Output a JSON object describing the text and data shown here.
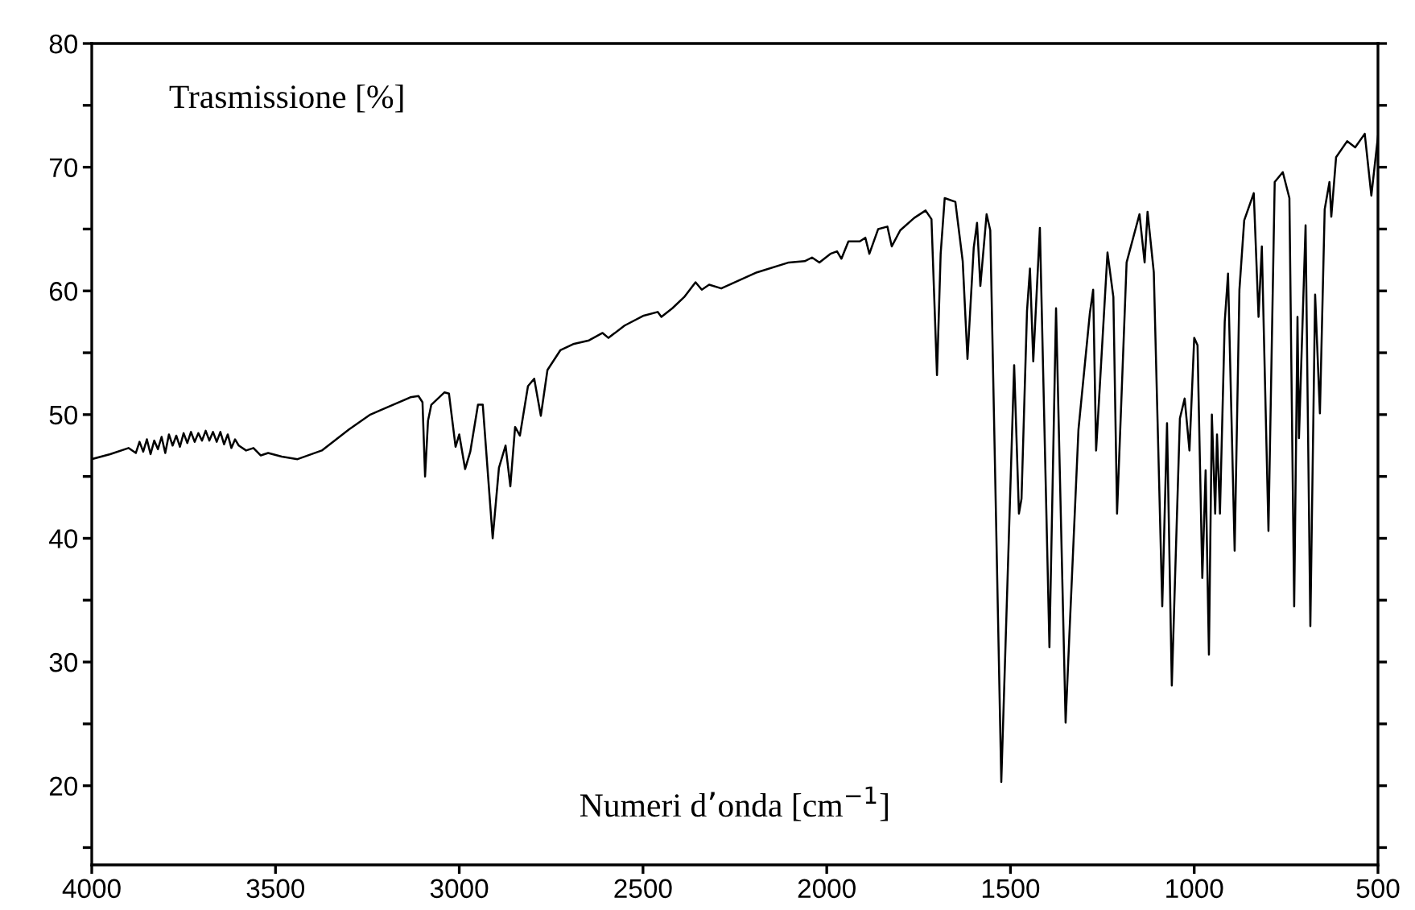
{
  "chart_data": {
    "type": "line",
    "xlabel": "Numeri d’onda [cm$^{−1}$]",
    "ylabel": "Trasmissione [%]",
    "xlim": [
      4000,
      500
    ],
    "ylim": [
      13.6,
      80
    ],
    "xticks": [
      4000,
      3500,
      3000,
      2500,
      2000,
      1500,
      1000,
      500
    ],
    "yticks": [
      {
        "value": 15,
        "label": null
      },
      20,
      {
        "value": 25,
        "label": null
      },
      30,
      {
        "value": 35,
        "label": null
      },
      40,
      {
        "value": 45,
        "label": null
      },
      50,
      {
        "value": 55,
        "label": null
      },
      60,
      {
        "value": 65,
        "label": null
      },
      70,
      {
        "value": 75,
        "label": null
      },
      80
    ],
    "grid": false,
    "legend": false,
    "marker": "none",
    "line_style": "solid",
    "series": [
      {
        "color": "#000000",
        "x": [
          4000,
          3950,
          3900,
          3880,
          3870,
          3860,
          3850,
          3840,
          3830,
          3820,
          3810,
          3800,
          3790,
          3780,
          3770,
          3760,
          3750,
          3740,
          3730,
          3720,
          3710,
          3700,
          3690,
          3680,
          3670,
          3660,
          3650,
          3640,
          3630,
          3620,
          3610,
          3600,
          3580,
          3560,
          3540,
          3520,
          3483,
          3440,
          3374,
          3300,
          3242,
          3180,
          3133,
          3111,
          3100,
          3093,
          3085,
          3076,
          3040,
          3028,
          3010,
          3000,
          2984,
          2970,
          2949,
          2936,
          2909,
          2892,
          2874,
          2861,
          2848,
          2835,
          2813,
          2796,
          2778,
          2760,
          2725,
          2690,
          2647,
          2610,
          2594,
          2550,
          2498,
          2460,
          2450,
          2420,
          2388,
          2357,
          2340,
          2320,
          2287,
          2190,
          2103,
          2060,
          2040,
          2020,
          1990,
          1972,
          1960,
          1941,
          1910,
          1895,
          1884,
          1860,
          1835,
          1823,
          1800,
          1762,
          1731,
          1715,
          1700,
          1690,
          1679,
          1650,
          1630,
          1617,
          1600,
          1591,
          1582,
          1565,
          1555,
          1525,
          1490,
          1477,
          1470,
          1455,
          1447,
          1438,
          1420,
          1394,
          1376,
          1350,
          1340,
          1315,
          1284,
          1275,
          1267,
          1236,
          1220,
          1210,
          1184,
          1149,
          1135,
          1127,
          1110,
          1087,
          1074,
          1061,
          1039,
          1026,
          1013,
          1000,
          991,
          978,
          969,
          960,
          952,
          943,
          938,
          930,
          917,
          908,
          890,
          877,
          864,
          838,
          825,
          816,
          798,
          781,
          759,
          741,
          728,
          719,
          715,
          697,
          684,
          671,
          658,
          645,
          632,
          627,
          614,
          584,
          562,
          536,
          518,
          500
        ],
        "values": [
          46.4,
          46.8,
          47.3,
          46.9,
          47.8,
          47.0,
          48.0,
          46.8,
          47.9,
          47.2,
          48.2,
          46.9,
          48.4,
          47.5,
          48.3,
          47.4,
          48.5,
          47.7,
          48.6,
          47.8,
          48.5,
          47.9,
          48.7,
          47.9,
          48.6,
          47.8,
          48.6,
          47.6,
          48.4,
          47.3,
          48.0,
          47.5,
          47.1,
          47.3,
          46.7,
          46.9,
          46.6,
          46.4,
          47.1,
          48.8,
          50.0,
          50.8,
          51.4,
          51.5,
          51.0,
          45.0,
          49.5,
          50.8,
          51.8,
          51.7,
          47.4,
          48.4,
          45.6,
          47.0,
          50.8,
          50.8,
          40.0,
          45.7,
          47.5,
          44.2,
          49.0,
          48.3,
          52.3,
          52.9,
          49.9,
          53.6,
          55.2,
          55.7,
          56.0,
          56.6,
          56.2,
          57.2,
          58.0,
          58.3,
          57.9,
          58.6,
          59.5,
          60.7,
          60.1,
          60.5,
          60.2,
          61.5,
          62.3,
          62.4,
          62.7,
          62.3,
          63.0,
          63.2,
          62.6,
          64.0,
          64.0,
          64.3,
          63.0,
          65.0,
          65.2,
          63.6,
          64.9,
          65.9,
          66.5,
          65.8,
          53.2,
          63.0,
          67.5,
          67.2,
          62.4,
          54.5,
          63.5,
          65.5,
          60.4,
          66.2,
          64.9,
          20.3,
          54.0,
          42.0,
          43.2,
          58.4,
          61.8,
          54.3,
          65.1,
          31.2,
          58.6,
          25.1,
          32.0,
          48.8,
          58.2,
          60.1,
          47.1,
          63.1,
          59.5,
          42.0,
          62.3,
          66.2,
          62.3,
          66.4,
          61.5,
          34.5,
          49.3,
          28.1,
          49.7,
          51.3,
          47.1,
          56.2,
          55.6,
          36.8,
          45.5,
          30.6,
          50.0,
          42.0,
          48.4,
          42.0,
          57.5,
          61.4,
          39.0,
          60.1,
          65.7,
          67.9,
          57.9,
          63.6,
          40.6,
          68.8,
          69.6,
          67.5,
          34.5,
          57.9,
          48.1,
          65.3,
          32.9,
          59.7,
          50.1,
          66.6,
          68.8,
          66.0,
          70.8,
          72.1,
          71.6,
          72.7,
          67.7,
          72.5
        ]
      }
    ]
  }
}
